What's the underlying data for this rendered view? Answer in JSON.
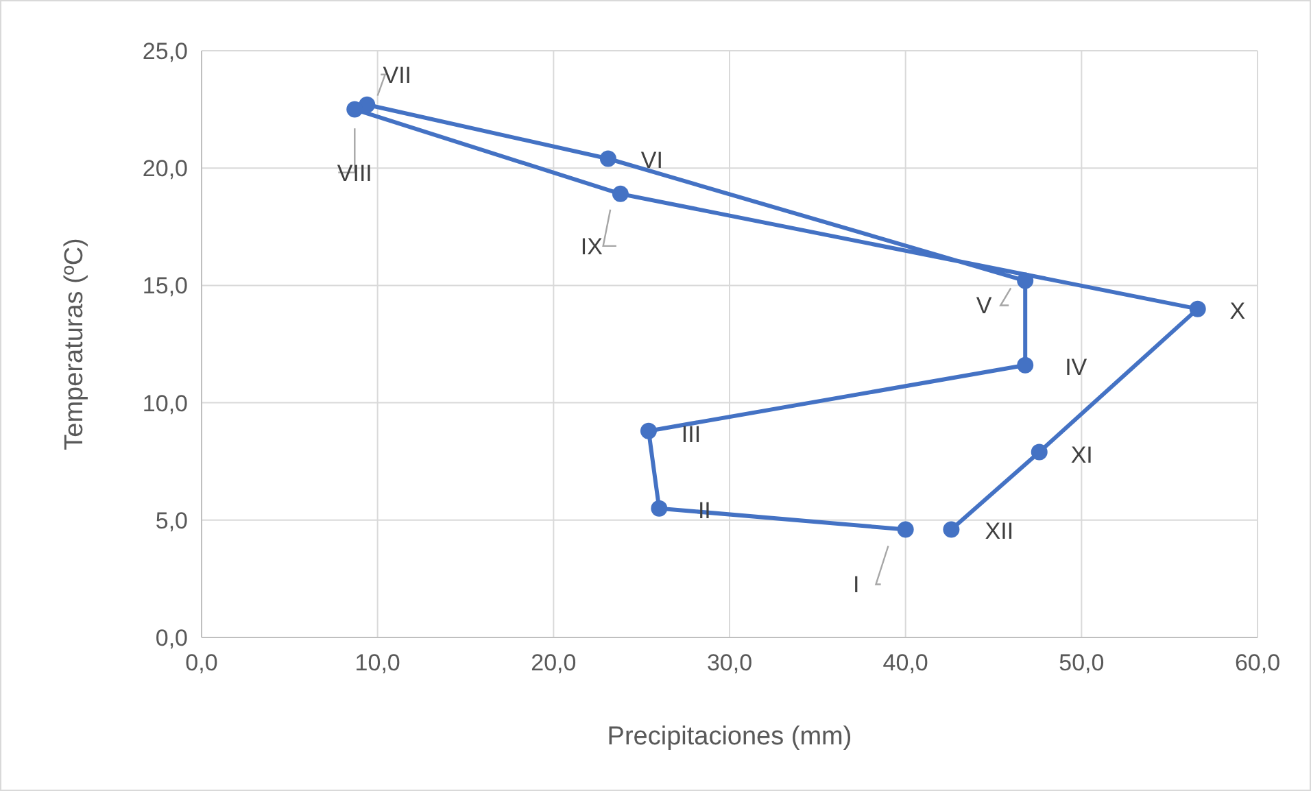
{
  "chart_data": {
    "type": "line",
    "xlabel": "Precipitaciones (mm)",
    "ylabel": "Temperaturas (ºC)",
    "xlim": [
      0,
      60
    ],
    "ylim": [
      0,
      25
    ],
    "xticks": [
      {
        "value": 0,
        "label": "0,0"
      },
      {
        "value": 10,
        "label": "10,0"
      },
      {
        "value": 20,
        "label": "20,0"
      },
      {
        "value": 30,
        "label": "30,0"
      },
      {
        "value": 40,
        "label": "40,0"
      },
      {
        "value": 50,
        "label": "50,0"
      },
      {
        "value": 60,
        "label": "60,0"
      }
    ],
    "yticks": [
      {
        "value": 0,
        "label": "0,0"
      },
      {
        "value": 5,
        "label": "5,0"
      },
      {
        "value": 10,
        "label": "10,0"
      },
      {
        "value": 15,
        "label": "15,0"
      },
      {
        "value": 20,
        "label": "20,0"
      },
      {
        "value": 25,
        "label": "25,0"
      }
    ],
    "grid": true,
    "marker": "circle",
    "line_style": "solid",
    "series": [
      {
        "color": "#4472c4",
        "x": [
          40.0,
          26.0,
          25.4,
          46.8,
          46.8,
          23.1,
          9.4,
          8.7,
          23.8,
          56.6,
          47.6,
          42.6
        ],
        "values": [
          4.6,
          5.5,
          8.8,
          11.6,
          15.2,
          20.4,
          22.7,
          22.5,
          18.9,
          14.0,
          7.9,
          4.6
        ],
        "value_labels": [
          "I",
          "II",
          "III",
          "IV",
          "V",
          "VI",
          "VII",
          "VIII",
          "IX",
          "X",
          "XI",
          "XII"
        ]
      }
    ]
  }
}
